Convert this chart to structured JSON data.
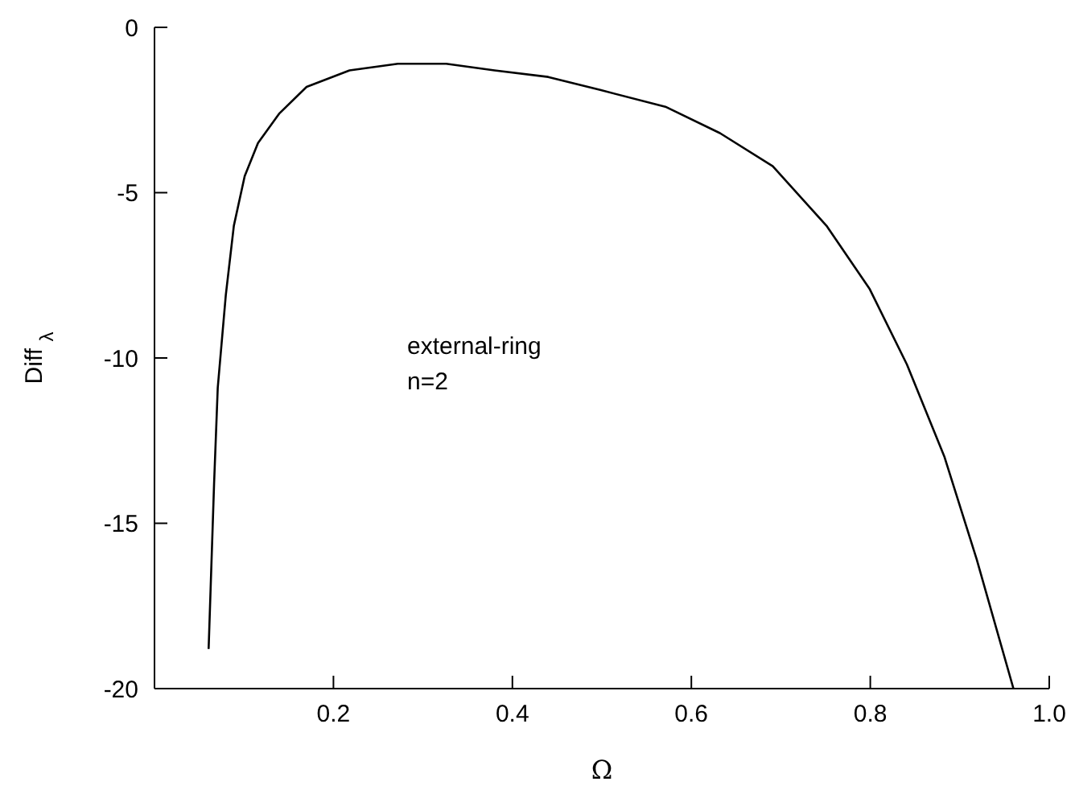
{
  "chart_data": {
    "type": "line",
    "xlabel": "Ω",
    "ylabel": "Diff $_{λ}$",
    "annotations": [
      "external-ring",
      "n=2"
    ],
    "xlim": [
      0,
      1
    ],
    "xticks": [
      0.2,
      0.4,
      0.6,
      0.8,
      {
        "value": 1,
        "label": "1.0"
      }
    ],
    "ylim": [
      -20,
      0
    ],
    "yticks": [
      -20,
      -15,
      -10,
      -5,
      0
    ],
    "grid": false,
    "legend": false,
    "marker": "none",
    "line_style": "solid",
    "series": [
      {
        "color": "#000000",
        "x": [
          0.0605,
          0.0666,
          0.0707,
          0.0797,
          0.0887,
          0.1008,
          0.1157,
          0.1397,
          0.17,
          0.218,
          0.272,
          0.326,
          0.38,
          0.44,
          0.499,
          0.571,
          0.632,
          0.691,
          0.751,
          0.799,
          0.841,
          0.883,
          0.919,
          0.96
        ],
        "values": [
          -18.8,
          -13.8,
          -10.9,
          -8.1,
          -6.0,
          -4.5,
          -3.5,
          -2.6,
          -1.8,
          -1.3,
          -1.1,
          -1.1,
          -1.3,
          -1.5,
          -1.9,
          -2.4,
          -3.2,
          -4.2,
          -6.0,
          -7.9,
          -10.2,
          -13.0,
          -16.1,
          -20.0
        ]
      }
    ]
  }
}
